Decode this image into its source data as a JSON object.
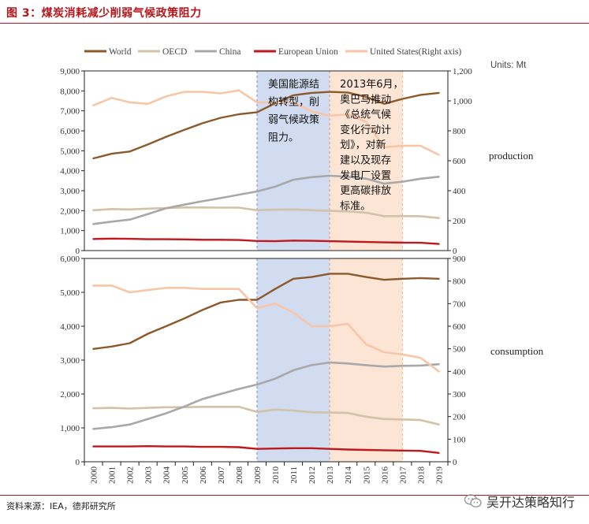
{
  "figure": {
    "title": "图 3：煤炭消耗减少削弱气候政策阻力",
    "source": "资料来源：IEA，德邦研究所",
    "watermark": "吴开达策略知行"
  },
  "units": "Units: Mt",
  "colors": {
    "World": "#8B5A2B",
    "OECD": "#D2C2A8",
    "China": "#A8A8A8",
    "European Union": "#C0181D",
    "United States(Right axis)": "#F8C6A6",
    "shade_blue": "#C9D6EE",
    "shade_orange": "#FBE1CE",
    "title_red": "#B4161B"
  },
  "annotations": {
    "blue_box": [
      "美国能源结",
      "构转型，削",
      "弱气候政策",
      "阻力。"
    ],
    "orange_box": [
      "2013年6月，",
      "奥巴马推动",
      "《总统气候",
      "变化行动计",
      "划》，对新",
      "建以及现存",
      "发电厂设置",
      "更高碳排放",
      "标准。"
    ]
  },
  "chart_data": [
    {
      "type": "line",
      "label": "production",
      "categories": [
        "2000",
        "2001",
        "2002",
        "2003",
        "2004",
        "2005",
        "2006",
        "2007",
        "2008",
        "2009",
        "2010",
        "2011",
        "2012",
        "2013",
        "2014",
        "2015",
        "2016",
        "2017",
        "2018",
        "2019"
      ],
      "ylim": [
        0,
        9000
      ],
      "yticks": [
        "0",
        "1,000",
        "2,000",
        "3,000",
        "4,000",
        "5,000",
        "6,000",
        "7,000",
        "8,000",
        "9,000"
      ],
      "y2lim": [
        0,
        1200
      ],
      "y2ticks": [
        "0",
        "200",
        "400",
        "600",
        "800",
        "1,000",
        "1,200"
      ],
      "series": [
        {
          "name": "World",
          "axis": "left",
          "values": [
            4620,
            4850,
            4960,
            5320,
            5700,
            6050,
            6380,
            6650,
            6830,
            6930,
            7380,
            7780,
            7900,
            7950,
            7920,
            7700,
            7350,
            7600,
            7800,
            7900
          ]
        },
        {
          "name": "OECD",
          "axis": "left",
          "values": [
            2020,
            2080,
            2060,
            2100,
            2130,
            2160,
            2160,
            2150,
            2150,
            2020,
            2050,
            2060,
            2020,
            1990,
            1960,
            1900,
            1720,
            1730,
            1720,
            1630
          ]
        },
        {
          "name": "China",
          "axis": "left",
          "values": [
            1330,
            1450,
            1550,
            1830,
            2120,
            2300,
            2470,
            2630,
            2800,
            2960,
            3200,
            3550,
            3680,
            3750,
            3700,
            3600,
            3350,
            3450,
            3600,
            3700
          ]
        },
        {
          "name": "European Union",
          "axis": "left",
          "values": [
            580,
            600,
            590,
            570,
            570,
            560,
            540,
            540,
            530,
            480,
            470,
            500,
            490,
            470,
            450,
            430,
            410,
            400,
            390,
            330
          ]
        },
        {
          "name": "United States(Right axis)",
          "axis": "right",
          "values": [
            970,
            1020,
            990,
            980,
            1030,
            1060,
            1060,
            1050,
            1070,
            990,
            990,
            990,
            930,
            900,
            910,
            860,
            690,
            700,
            700,
            640
          ]
        }
      ],
      "shaded_periods": [
        {
          "from": "2009",
          "to": "2013"
        },
        {
          "from": "2013",
          "to": "2017"
        }
      ]
    },
    {
      "type": "line",
      "label": "consumption",
      "categories": [
        "2000",
        "2001",
        "2002",
        "2003",
        "2004",
        "2005",
        "2006",
        "2007",
        "2008",
        "2009",
        "2010",
        "2011",
        "2012",
        "2013",
        "2014",
        "2015",
        "2016",
        "2017",
        "2018",
        "2019"
      ],
      "ylim": [
        0,
        6000
      ],
      "yticks": [
        "0",
        "1,000",
        "2,000",
        "3,000",
        "4,000",
        "5,000",
        "6,000"
      ],
      "y2lim": [
        0,
        900
      ],
      "y2ticks": [
        "0",
        "100",
        "200",
        "300",
        "400",
        "500",
        "600",
        "700",
        "800",
        "900"
      ],
      "series": [
        {
          "name": "World",
          "axis": "left",
          "values": [
            3330,
            3400,
            3500,
            3780,
            4000,
            4230,
            4480,
            4700,
            4780,
            4780,
            5100,
            5400,
            5450,
            5550,
            5550,
            5450,
            5370,
            5400,
            5420,
            5400
          ]
        },
        {
          "name": "OECD",
          "axis": "left",
          "values": [
            1580,
            1590,
            1570,
            1590,
            1610,
            1610,
            1620,
            1620,
            1620,
            1470,
            1540,
            1510,
            1460,
            1450,
            1440,
            1330,
            1260,
            1250,
            1230,
            1100
          ]
        },
        {
          "name": "China",
          "axis": "left",
          "values": [
            970,
            1020,
            1100,
            1260,
            1430,
            1630,
            1850,
            2000,
            2150,
            2280,
            2450,
            2700,
            2850,
            2930,
            2900,
            2850,
            2810,
            2830,
            2840,
            2880
          ]
        },
        {
          "name": "European Union",
          "axis": "left",
          "values": [
            450,
            450,
            450,
            460,
            450,
            450,
            440,
            440,
            430,
            380,
            390,
            400,
            400,
            380,
            360,
            350,
            340,
            330,
            320,
            260
          ]
        },
        {
          "name": "United States(Right axis)",
          "axis": "right",
          "values": [
            780,
            780,
            750,
            760,
            770,
            770,
            765,
            765,
            765,
            680,
            700,
            660,
            600,
            600,
            610,
            520,
            485,
            475,
            460,
            400
          ]
        }
      ],
      "shaded_periods": [
        {
          "from": "2009",
          "to": "2013"
        },
        {
          "from": "2013",
          "to": "2017"
        }
      ]
    }
  ]
}
